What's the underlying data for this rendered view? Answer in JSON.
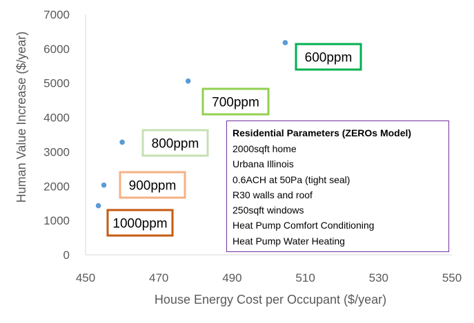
{
  "chart_data": {
    "type": "scatter",
    "xlabel": "House Energy Cost per Occupant ($/year)",
    "ylabel": "Human Value Increase ($/year)",
    "xlim": [
      450,
      550
    ],
    "ylim": [
      0,
      7000
    ],
    "x_ticks": [
      "450",
      "470",
      "490",
      "510",
      "530",
      "550"
    ],
    "y_ticks": [
      "0",
      "1000",
      "2000",
      "3000",
      "4000",
      "5000",
      "6000",
      "7000"
    ],
    "grid": false,
    "marker_color": "#5b9bd5",
    "points": [
      {
        "x": 453.5,
        "y": 1430,
        "label": "1000ppm",
        "label_color": "#c55a11"
      },
      {
        "x": 455,
        "y": 2030,
        "label": "900ppm",
        "label_color": "#f4b183"
      },
      {
        "x": 460,
        "y": 3280,
        "label": "800ppm",
        "label_color": "#c5e0b4"
      },
      {
        "x": 478,
        "y": 5060,
        "label": "700ppm",
        "label_color": "#92d050"
      },
      {
        "x": 504.5,
        "y": 6180,
        "label": "600ppm",
        "label_color": "#00b050"
      }
    ],
    "annotation": {
      "title": "Residential Parameters (ZEROs Model)",
      "lines": [
        "2000sqft home",
        "Urbana Illinois",
        "0.6ACH at 50Pa (tight seal)",
        "R30 walls and roof",
        "250sqft windows",
        "Heat Pump Comfort Conditioning",
        "Heat Pump Water Heating"
      ],
      "border_color": "#7030a0"
    }
  }
}
